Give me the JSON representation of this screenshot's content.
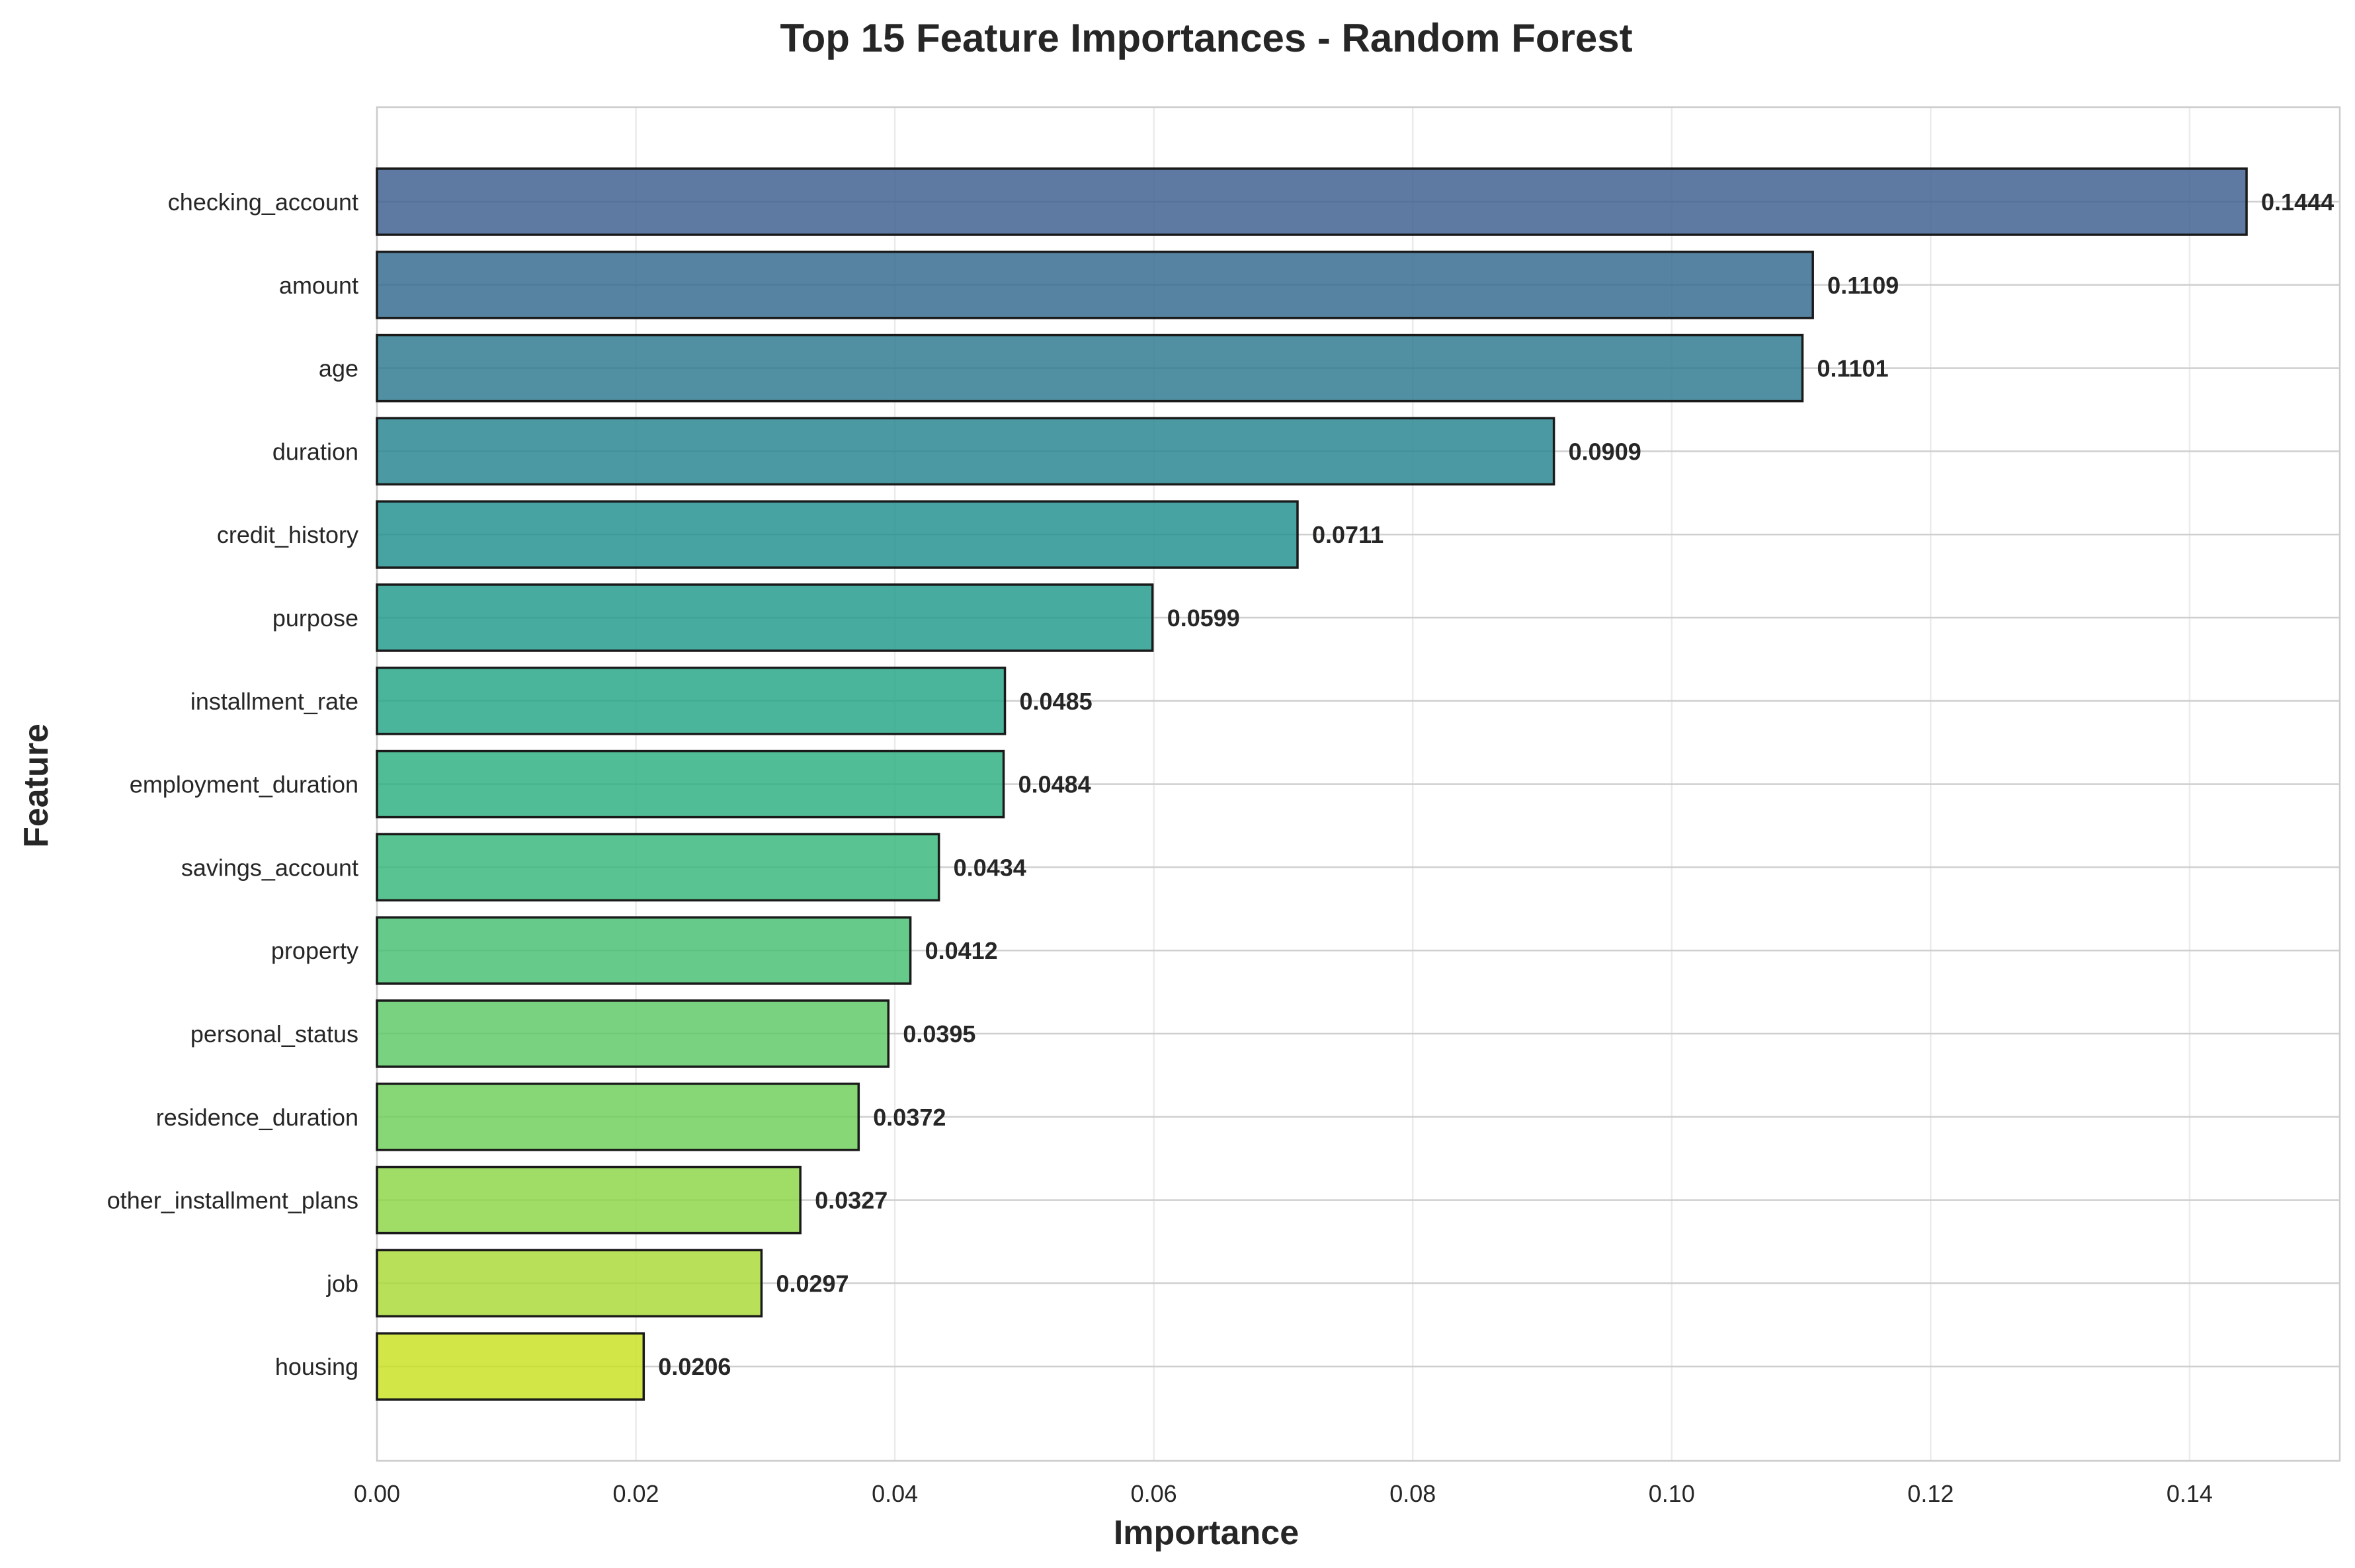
{
  "chart_data": {
    "type": "bar",
    "orientation": "horizontal",
    "title": "Top 15 Feature Importances - Random Forest",
    "xlabel": "Importance",
    "ylabel": "Feature",
    "xlim": [
      0,
      0.1516
    ],
    "xticks": [
      0.0,
      0.02,
      0.04,
      0.06,
      0.08,
      0.1,
      0.12,
      0.14
    ],
    "xtick_labels": [
      "0.00",
      "0.02",
      "0.04",
      "0.06",
      "0.08",
      "0.10",
      "0.12",
      "0.14"
    ],
    "grid": true,
    "colormap": "viridis",
    "bars": [
      {
        "category": "checking_account",
        "value": 0.1444,
        "label": "0.1444",
        "color": "#3b5d8e"
      },
      {
        "category": "amount",
        "value": 0.1109,
        "label": "0.1109",
        "color": "#31688e"
      },
      {
        "category": "age",
        "value": 0.1101,
        "label": "0.1101",
        "color": "#29788e"
      },
      {
        "category": "duration",
        "value": 0.0909,
        "label": "0.0909",
        "color": "#23838e"
      },
      {
        "category": "credit_history",
        "value": 0.0711,
        "label": "0.0711",
        "color": "#1f8f8d"
      },
      {
        "category": "purpose",
        "value": 0.0599,
        "label": "0.0599",
        "color": "#1e9a8a"
      },
      {
        "category": "installment_rate",
        "value": 0.0485,
        "label": "0.0485",
        "color": "#22a585"
      },
      {
        "category": "employment_duration",
        "value": 0.0484,
        "label": "0.0484",
        "color": "#2aaf7f"
      },
      {
        "category": "savings_account",
        "value": 0.0434,
        "label": "0.0434",
        "color": "#35b779"
      },
      {
        "category": "property",
        "value": 0.0412,
        "label": "0.0412",
        "color": "#44bf70"
      },
      {
        "category": "personal_status",
        "value": 0.0395,
        "label": "0.0395",
        "color": "#5ac864"
      },
      {
        "category": "residence_duration",
        "value": 0.0372,
        "label": "0.0372",
        "color": "#6ece58"
      },
      {
        "category": "other_installment_plans",
        "value": 0.0327,
        "label": "0.0327",
        "color": "#8bd646"
      },
      {
        "category": "job",
        "value": 0.0297,
        "label": "0.0297",
        "color": "#a8db34"
      },
      {
        "category": "housing",
        "value": 0.0206,
        "label": "0.0206",
        "color": "#c8e020"
      }
    ]
  }
}
